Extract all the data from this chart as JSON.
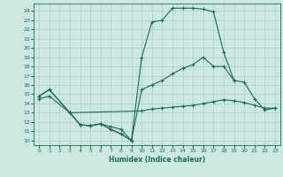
{
  "xlabel": "Humidex (Indice chaleur)",
  "bg_color": "#cce8e0",
  "grid_color": "#aad0c8",
  "line_color": "#1a6b5a",
  "xlim": [
    -0.5,
    23.5
  ],
  "ylim": [
    9.5,
    24.8
  ],
  "xticks": [
    0,
    1,
    2,
    3,
    4,
    5,
    6,
    7,
    8,
    9,
    10,
    11,
    12,
    13,
    14,
    15,
    16,
    17,
    18,
    19,
    20,
    21,
    22,
    23
  ],
  "yticks": [
    10,
    11,
    12,
    13,
    14,
    15,
    16,
    17,
    18,
    19,
    20,
    21,
    22,
    23,
    24
  ],
  "line1_x": [
    0,
    1,
    3,
    4,
    5,
    6,
    7,
    8,
    9,
    10,
    11,
    12,
    13,
    14,
    15,
    16,
    17,
    18,
    19,
    20,
    21
  ],
  "line1_y": [
    14.8,
    15.5,
    13.0,
    11.7,
    11.6,
    11.8,
    11.2,
    10.7,
    10.0,
    19.0,
    22.8,
    23.0,
    24.3,
    24.3,
    24.3,
    24.2,
    23.9,
    19.5,
    16.5,
    null,
    null
  ],
  "line2_x": [
    0,
    1,
    3,
    4,
    5,
    6,
    7,
    8,
    9,
    10,
    11,
    12,
    13,
    14,
    15,
    16,
    17,
    18,
    19,
    20,
    21,
    22,
    23
  ],
  "line2_y": [
    14.8,
    15.5,
    13.0,
    11.7,
    11.6,
    11.8,
    11.2,
    10.7,
    10.0,
    15.5,
    16.0,
    16.5,
    17.2,
    17.8,
    18.2,
    19.0,
    18.0,
    18.0,
    16.5,
    16.3,
    14.5,
    13.3,
    13.5
  ],
  "line3_x": [
    0,
    1,
    3,
    10,
    11,
    12,
    13,
    14,
    15,
    16,
    17,
    18,
    19,
    20,
    21,
    22,
    23
  ],
  "line3_y": [
    14.5,
    14.8,
    13.0,
    13.2,
    13.4,
    13.5,
    13.6,
    13.7,
    13.8,
    14.0,
    14.2,
    14.4,
    14.3,
    14.1,
    13.8,
    13.5,
    13.5
  ],
  "line4_x": [
    3,
    4,
    5,
    6,
    7,
    8,
    9
  ],
  "line4_y": [
    13.0,
    11.7,
    11.6,
    11.8,
    11.5,
    11.2,
    10.0
  ]
}
